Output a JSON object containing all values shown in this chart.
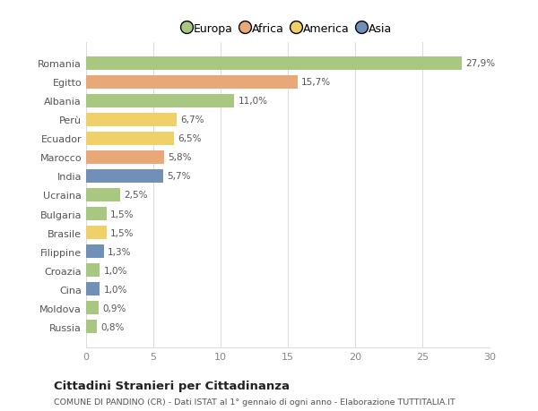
{
  "categories": [
    "Romania",
    "Egitto",
    "Albania",
    "Perù",
    "Ecuador",
    "Marocco",
    "India",
    "Ucraina",
    "Bulgaria",
    "Brasile",
    "Filippine",
    "Croazia",
    "Cina",
    "Moldova",
    "Russia"
  ],
  "values": [
    27.9,
    15.7,
    11.0,
    6.7,
    6.5,
    5.8,
    5.7,
    2.5,
    1.5,
    1.5,
    1.3,
    1.0,
    1.0,
    0.9,
    0.8
  ],
  "labels": [
    "27,9%",
    "15,7%",
    "11,0%",
    "6,7%",
    "6,5%",
    "5,8%",
    "5,7%",
    "2,5%",
    "1,5%",
    "1,5%",
    "1,3%",
    "1,0%",
    "1,0%",
    "0,9%",
    "0,8%"
  ],
  "bar_colors": [
    "#a8c882",
    "#e8a878",
    "#a8c882",
    "#f0d068",
    "#f0d068",
    "#e8a878",
    "#7090b8",
    "#a8c882",
    "#a8c882",
    "#f0d068",
    "#7090b8",
    "#a8c882",
    "#7090b8",
    "#a8c882",
    "#a8c882"
  ],
  "legend": [
    {
      "label": "Europa",
      "color": "#a8c882"
    },
    {
      "label": "Africa",
      "color": "#e8a878"
    },
    {
      "label": "America",
      "color": "#f0d068"
    },
    {
      "label": "Asia",
      "color": "#7090b8"
    }
  ],
  "xlim": [
    0,
    30
  ],
  "xticks": [
    0,
    5,
    10,
    15,
    20,
    25,
    30
  ],
  "title": "Cittadini Stranieri per Cittadinanza",
  "subtitle": "COMUNE DI PANDINO (CR) - Dati ISTAT al 1° gennaio di ogni anno - Elaborazione TUTTITALIA.IT",
  "bg_color": "#ffffff",
  "grid_color": "#dddddd",
  "bar_height": 0.72
}
